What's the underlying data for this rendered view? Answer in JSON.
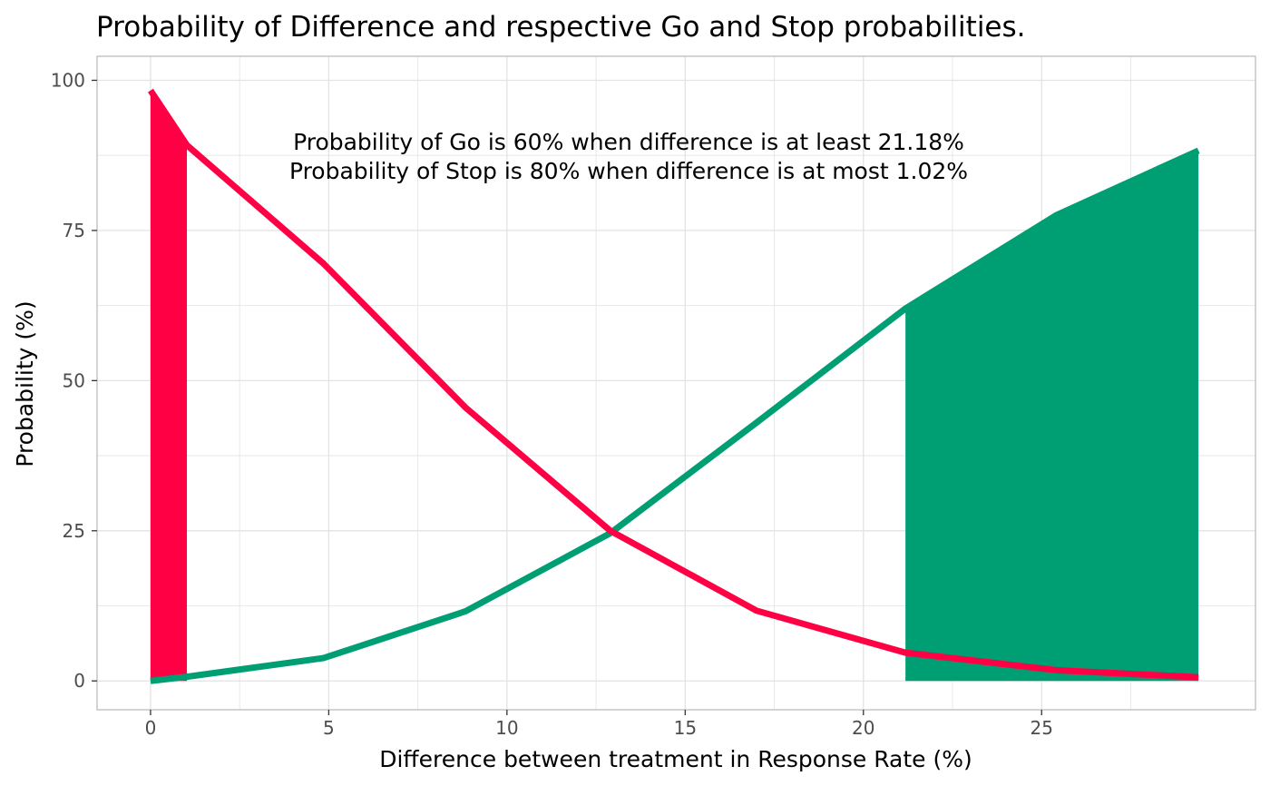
{
  "chart_data": {
    "type": "line",
    "title": "Probability of Difference and respective Go and Stop probabilities.",
    "xlabel": "Difference between treatment in Response Rate (%)",
    "ylabel": "Probability (%)",
    "xlim": [
      -1.5,
      31
    ],
    "ylim": [
      -4.8,
      104
    ],
    "x_ticks": [
      0,
      5,
      10,
      15,
      20,
      25
    ],
    "x_tick_labels": [
      "0",
      "5",
      "10",
      "15",
      "20",
      "25"
    ],
    "y_ticks": [
      0,
      25,
      50,
      75,
      100
    ],
    "y_tick_labels": [
      "0",
      "25",
      "50",
      "75",
      "100"
    ],
    "grid": true,
    "colors": {
      "stop": "#ff0045",
      "go": "#009e73",
      "grid": "#e3e3e3",
      "panel_border": "#bdbdbd"
    },
    "series": [
      {
        "key": "stop",
        "x": [
          0.0,
          1.02,
          4.85,
          8.84,
          12.9,
          17.0,
          21.18,
          25.4,
          29.4
        ],
        "values": [
          98.3,
          89.2,
          69.5,
          45.5,
          25.0,
          11.7,
          4.7,
          1.8,
          0.6
        ]
      },
      {
        "key": "go",
        "x": [
          0.0,
          1.02,
          4.85,
          8.84,
          12.9,
          17.0,
          21.18,
          25.4,
          29.4
        ],
        "values": [
          0.0,
          0.7,
          3.8,
          11.6,
          24.6,
          43.0,
          62.0,
          77.5,
          88.3
        ]
      }
    ],
    "shaded_regions": [
      {
        "key": "stop",
        "x_from": 0.0,
        "x_to": 1.02
      },
      {
        "key": "go",
        "x_from": 21.18,
        "x_to": 29.4
      }
    ],
    "annotations": [
      "Probability of Go is 60% when difference is at least 21.18%",
      "Probability of Stop is 80% when difference is at most 1.02%"
    ]
  }
}
